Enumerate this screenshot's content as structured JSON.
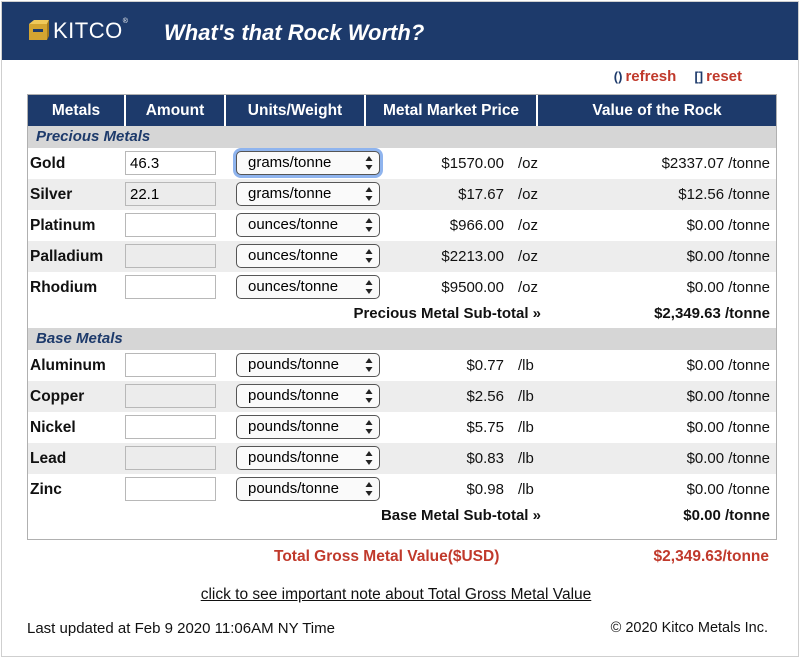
{
  "header": {
    "logo_text": "KITCO",
    "logo_mark": "®",
    "title": "What's that Rock Worth?"
  },
  "links": {
    "refresh": "refresh",
    "reset": "reset"
  },
  "columns": [
    "Metals",
    "Amount",
    "Units/Weight",
    "Metal Market Price",
    "Value of the Rock"
  ],
  "precious": {
    "title": "Precious Metals",
    "rows": [
      {
        "name": "Gold",
        "amount": "46.3",
        "unit_select": "grams/tonne",
        "price": "$1570.00",
        "per": "/oz",
        "value": "$2337.07 /tonne"
      },
      {
        "name": "Silver",
        "amount": "22.1",
        "unit_select": "grams/tonne",
        "price": "$17.67",
        "per": "/oz",
        "value": "$12.56 /tonne"
      },
      {
        "name": "Platinum",
        "amount": "",
        "unit_select": "ounces/tonne",
        "price": "$966.00",
        "per": "/oz",
        "value": "$0.00 /tonne"
      },
      {
        "name": "Palladium",
        "amount": "",
        "unit_select": "ounces/tonne",
        "price": "$2213.00",
        "per": "/oz",
        "value": "$0.00 /tonne"
      },
      {
        "name": "Rhodium",
        "amount": "",
        "unit_select": "ounces/tonne",
        "price": "$9500.00",
        "per": "/oz",
        "value": "$0.00 /tonne"
      }
    ],
    "subtotal_label": "Precious Metal Sub-total »",
    "subtotal_value": "$2,349.63 /tonne"
  },
  "base": {
    "title": "Base Metals",
    "rows": [
      {
        "name": "Aluminum",
        "amount": "",
        "unit_select": "pounds/tonne",
        "price": "$0.77",
        "per": "/lb",
        "value": "$0.00 /tonne"
      },
      {
        "name": "Copper",
        "amount": "",
        "unit_select": "pounds/tonne",
        "price": "$2.56",
        "per": "/lb",
        "value": "$0.00 /tonne"
      },
      {
        "name": "Nickel",
        "amount": "",
        "unit_select": "pounds/tonne",
        "price": "$5.75",
        "per": "/lb",
        "value": "$0.00 /tonne"
      },
      {
        "name": "Lead",
        "amount": "",
        "unit_select": "pounds/tonne",
        "price": "$0.83",
        "per": "/lb",
        "value": "$0.00 /tonne"
      },
      {
        "name": "Zinc",
        "amount": "",
        "unit_select": "pounds/tonne",
        "price": "$0.98",
        "per": "/lb",
        "value": "$0.00 /tonne"
      }
    ],
    "subtotal_label": "Base Metal Sub-total »",
    "subtotal_value": "$0.00 /tonne"
  },
  "gross": {
    "label": "Total Gross Metal Value($USD)",
    "value": "$2,349.63/tonne"
  },
  "note_link": "click to see important note about Total Gross Metal Value",
  "footer": {
    "updated": "Last updated at Feb 9 2020 11:06AM NY Time",
    "copyright": "© 2020 Kitco Metals Inc."
  },
  "colors": {
    "brand_navy": "#1d3a6b",
    "accent_red": "#c0392b",
    "logo_gold": "#d4a531"
  }
}
